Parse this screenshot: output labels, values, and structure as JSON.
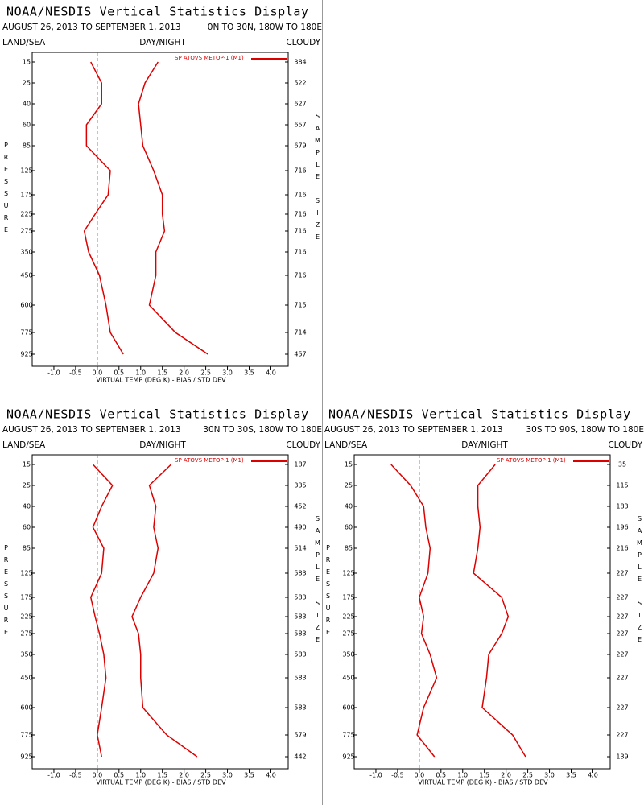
{
  "chart_data": [
    {
      "type": "line",
      "title": "NOAA/NESDIS Vertical Statistics Display",
      "subtitle": "AUGUST 26, 2013 TO SEPTEMBER 1, 2013",
      "region": "0N TO 30N, 180W TO 180E",
      "land_sea": "LAND/SEA",
      "day_night": "DAY/NIGHT",
      "cloudy": "CLOUDY",
      "y_label": "PRESSURE",
      "y2_label": "SAMPLE SIZE",
      "x_label": "VIRTUAL TEMP (DEG K) - BIAS / STD DEV",
      "categories": [
        15,
        25,
        40,
        60,
        85,
        125,
        175,
        225,
        275,
        350,
        450,
        600,
        775,
        925
      ],
      "sample_size": [
        384,
        522,
        627,
        657,
        679,
        716,
        716,
        716,
        716,
        716,
        716,
        715,
        714,
        457
      ],
      "series": [
        {
          "name": "SP ATOVS METOP-1 (M1)",
          "color": "#dd0000",
          "values": [
            -0.15,
            0.1,
            0.1,
            -0.25,
            -0.25,
            0.3,
            0.25,
            -0.05,
            -0.3,
            -0.2,
            0.05,
            0.2,
            0.3,
            0.6
          ]
        },
        {
          "color": "#dd0000",
          "values": [
            1.4,
            1.1,
            0.95,
            1.0,
            1.05,
            1.3,
            1.5,
            1.5,
            1.55,
            1.35,
            1.35,
            1.2,
            1.8,
            2.55
          ]
        }
      ],
      "xlim": [
        -1.5,
        4.4
      ],
      "xticks": [
        {
          "value": -1,
          "label": "-1.0"
        },
        -0.5,
        {
          "value": 0,
          "label": "0.0"
        },
        0.5,
        {
          "value": 1,
          "label": "1.0"
        },
        1.5,
        {
          "value": 2,
          "label": "2.0"
        },
        2.5,
        {
          "value": 3,
          "label": "3.0"
        },
        3.5,
        {
          "value": 4,
          "label": "4.0"
        }
      ],
      "zero_line": true
    },
    {
      "type": "line",
      "title": "NOAA/NESDIS Vertical Statistics Display",
      "subtitle": "AUGUST 26, 2013 TO SEPTEMBER 1, 2013",
      "region": "30N TO 30S, 180W TO 180E",
      "land_sea": "LAND/SEA",
      "day_night": "DAY/NIGHT",
      "cloudy": "CLOUDY",
      "y_label": "PRESSURE",
      "y2_label": "SAMPLE SIZE",
      "x_label": "VIRTUAL TEMP (DEG K) - BIAS / STD DEV",
      "categories": [
        15,
        25,
        40,
        60,
        85,
        125,
        175,
        225,
        275,
        350,
        450,
        600,
        775,
        925
      ],
      "sample_size": [
        187,
        335,
        452,
        490,
        514,
        583,
        583,
        583,
        583,
        583,
        583,
        583,
        579,
        442
      ],
      "series": [
        {
          "name": "SP ATOVS METOP-1 (M1)",
          "color": "#dd0000",
          "values": [
            -0.1,
            0.35,
            0.1,
            -0.1,
            0.15,
            0.1,
            -0.15,
            -0.05,
            0.05,
            0.15,
            0.2,
            0.1,
            0.0,
            0.1
          ]
        },
        {
          "color": "#dd0000",
          "values": [
            1.7,
            1.2,
            1.35,
            1.3,
            1.4,
            1.3,
            1.0,
            0.8,
            0.95,
            1.0,
            1.0,
            1.05,
            1.6,
            2.3
          ]
        }
      ],
      "xlim": [
        -1.5,
        4.4
      ],
      "xticks": [
        {
          "value": -1,
          "label": "-1.0"
        },
        -0.5,
        {
          "value": 0,
          "label": "0.0"
        },
        0.5,
        {
          "value": 1,
          "label": "1.0"
        },
        1.5,
        {
          "value": 2,
          "label": "2.0"
        },
        2.5,
        {
          "value": 3,
          "label": "3.0"
        },
        3.5,
        {
          "value": 4,
          "label": "4.0"
        }
      ],
      "zero_line": true
    },
    {
      "type": "line",
      "title": "NOAA/NESDIS Vertical Statistics Display",
      "subtitle": "AUGUST 26, 2013 TO SEPTEMBER 1, 2013",
      "region": "30S TO 90S, 180W TO 180E",
      "land_sea": "LAND/SEA",
      "day_night": "DAY/NIGHT",
      "cloudy": "CLOUDY",
      "y_label": "PRESSURE",
      "y2_label": "SAMPLE SIZE",
      "x_label": "VIRTUAL TEMP (DEG K) - BIAS / STD DEV",
      "categories": [
        15,
        25,
        40,
        60,
        85,
        125,
        175,
        225,
        275,
        350,
        450,
        600,
        775,
        925
      ],
      "sample_size": [
        35,
        115,
        183,
        196,
        216,
        227,
        227,
        227,
        227,
        227,
        227,
        227,
        227,
        139
      ],
      "series": [
        {
          "name": "SP ATOVS METOP-1 (M1)",
          "color": "#dd0000",
          "values": [
            -0.65,
            -0.2,
            0.1,
            0.15,
            0.25,
            0.2,
            0.0,
            0.1,
            0.05,
            0.25,
            0.4,
            0.1,
            -0.05,
            0.35
          ]
        },
        {
          "color": "#dd0000",
          "values": [
            1.75,
            1.35,
            1.35,
            1.4,
            1.35,
            1.25,
            1.9,
            2.05,
            1.9,
            1.6,
            1.55,
            1.45,
            2.15,
            2.45
          ]
        }
      ],
      "xlim": [
        -1.5,
        4.4
      ],
      "xticks": [
        {
          "value": -1,
          "label": "-1.0"
        },
        -0.5,
        {
          "value": 0,
          "label": "0.0"
        },
        0.5,
        {
          "value": 1,
          "label": "1.0"
        },
        1.5,
        {
          "value": 2,
          "label": "2.0"
        },
        2.5,
        {
          "value": 3,
          "label": "3.0"
        },
        3.5,
        {
          "value": 4,
          "label": "4.0"
        }
      ],
      "zero_line": true
    }
  ]
}
